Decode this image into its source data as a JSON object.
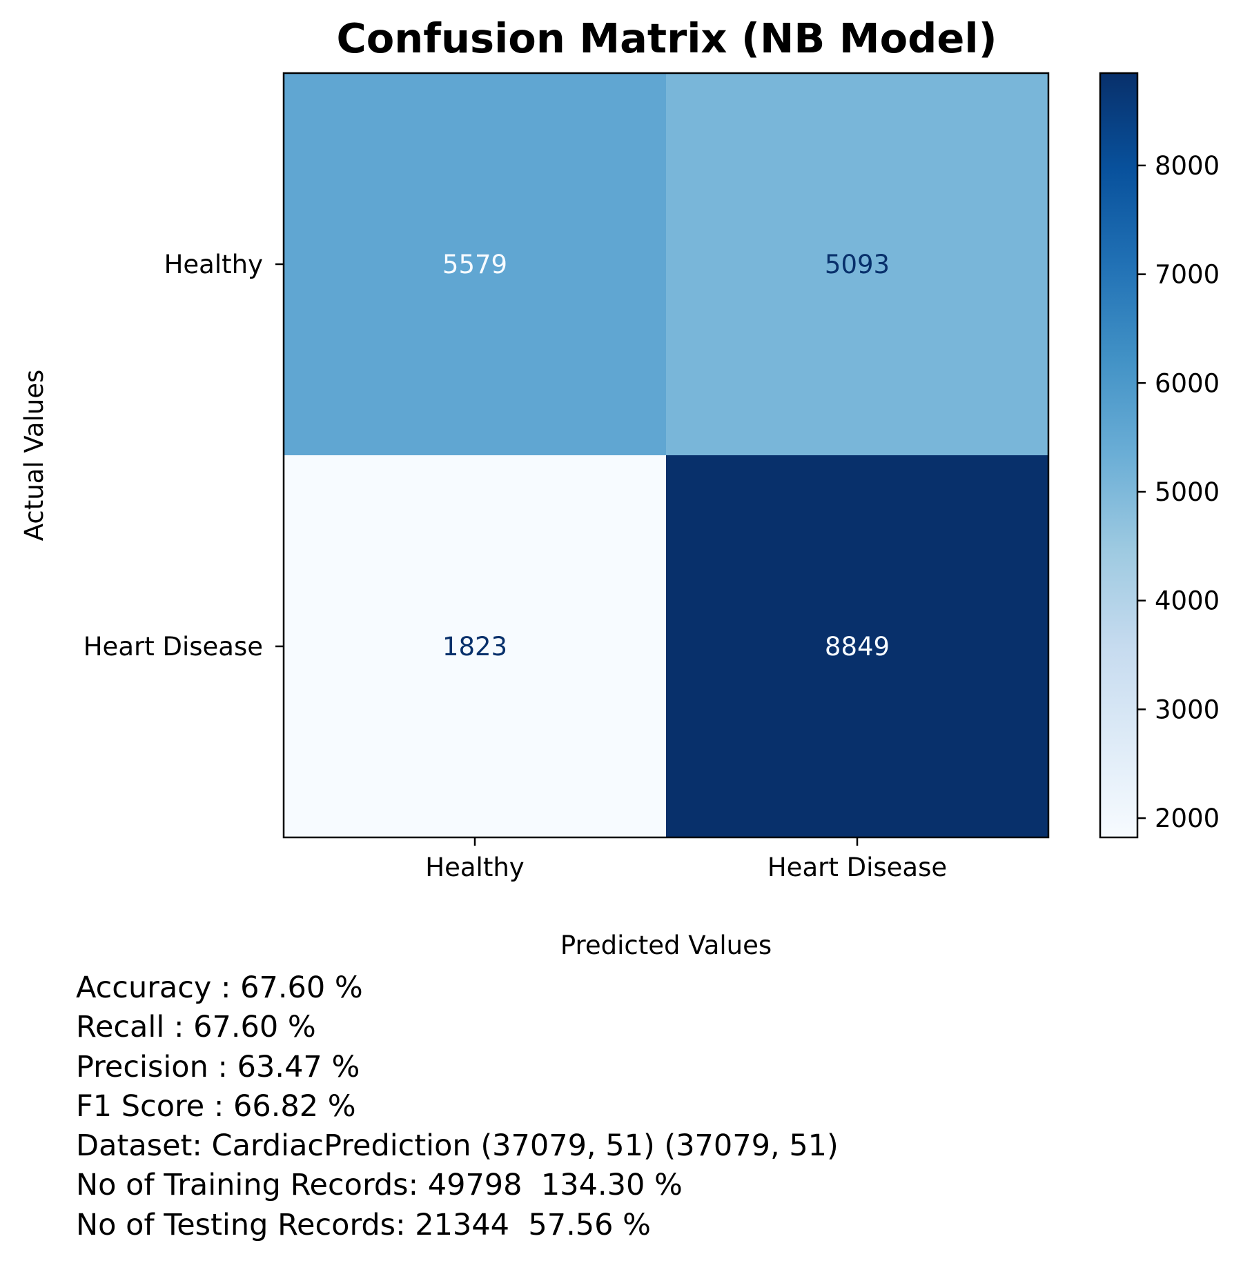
{
  "chart_data": {
    "type": "heatmap",
    "title": "Confusion Matrix (NB Model)",
    "xlabel": "Predicted Values",
    "ylabel": "Actual Values",
    "x_categories": [
      "Healthy",
      "Heart Disease"
    ],
    "y_categories": [
      "Healthy",
      "Heart Disease"
    ],
    "matrix": [
      [
        5579,
        5093
      ],
      [
        1823,
        8849
      ]
    ],
    "colormap": "Blues",
    "colorbar": {
      "range": [
        1823,
        8849
      ],
      "ticks": [
        2000,
        3000,
        4000,
        5000,
        6000,
        7000,
        8000
      ],
      "tick_labels": [
        "2000",
        "3000",
        "4000",
        "5000",
        "6000",
        "7000",
        "8000"
      ]
    }
  },
  "metrics": [
    "Accuracy : 67.60 %",
    "Recall : 67.60 %",
    "Precision : 63.47 %",
    "F1 Score : 66.82 %",
    "Dataset: CardiacPrediction (37079, 51) (37079, 51)",
    "No of Training Records: 49798  134.30 %",
    "No of Testing Records: 21344  57.56 %"
  ]
}
